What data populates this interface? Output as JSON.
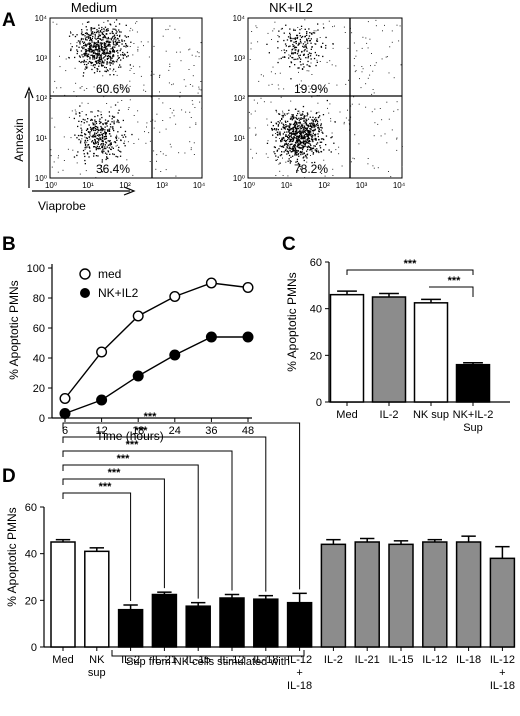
{
  "panels": {
    "A": {
      "letter": "A",
      "flow": [
        {
          "title": "Medium",
          "q_upper": "60.6%",
          "q_lower": "36.4%",
          "upper_density": 0.62,
          "lower_density": 0.36
        },
        {
          "title": "NK+IL2",
          "q_upper": "19.9%",
          "q_lower": "78.2%",
          "upper_density": 0.2,
          "lower_density": 0.78
        }
      ],
      "ylabel": "Annexin",
      "xlabel": "Viaprobe",
      "axis_ticks": [
        "10⁰",
        "10¹",
        "10²",
        "10³",
        "10⁴"
      ]
    },
    "B": {
      "letter": "B"
    },
    "C": {
      "letter": "C"
    },
    "D": {
      "letter": "D",
      "bracket_label": "Sup from NK cells stimulated with"
    }
  },
  "chart_data": [
    {
      "panel": "B",
      "type": "line",
      "x": [
        6,
        12,
        18,
        24,
        36,
        48
      ],
      "x_tick_labels": [
        "6",
        "12",
        "18",
        "24",
        "36",
        "48"
      ],
      "series": [
        {
          "name": "med",
          "marker": "open-circle",
          "values": [
            13,
            44,
            68,
            81,
            90,
            87
          ]
        },
        {
          "name": "NK+IL2",
          "marker": "filled-circle",
          "values": [
            3,
            12,
            28,
            42,
            54,
            54
          ]
        }
      ],
      "xlabel": "Time (hours)",
      "ylabel": "% Apoptotic PMNs",
      "ylim": [
        0,
        100
      ],
      "yticks": [
        0,
        20,
        40,
        60,
        80,
        100
      ],
      "legend": "top-left"
    },
    {
      "panel": "C",
      "type": "bar",
      "categories": [
        "Med",
        "IL-2",
        "NK sup",
        "NK+IL-2\nSup"
      ],
      "values": [
        46,
        45,
        42.5,
        16
      ],
      "errors": [
        1.5,
        1.5,
        1.5,
        0.8
      ],
      "fills": [
        "#ffffff",
        "#8c8c8c",
        "#ffffff",
        "#000000"
      ],
      "ylabel": "% Apoptotic PMNs",
      "ylim": [
        0,
        60
      ],
      "yticks": [
        0,
        20,
        40,
        60
      ],
      "significance": [
        {
          "from": 0,
          "to": 3,
          "label": "***"
        },
        {
          "from": 2,
          "to": 3,
          "label": "***"
        }
      ]
    },
    {
      "panel": "D",
      "type": "bar",
      "categories": [
        "Med",
        "NK\nsup",
        "IL-2",
        "IL-21",
        "IL-15",
        "IL-12",
        "IL-18",
        "IL-12\n+\nIL-18",
        "IL-2",
        "IL-21",
        "IL-15",
        "IL-12",
        "IL-18",
        "IL-12\n+\nIL-18"
      ],
      "values": [
        45,
        41,
        16,
        22.5,
        17.5,
        21,
        20.5,
        19,
        44,
        45,
        44,
        45,
        45,
        38
      ],
      "errors": [
        1,
        1.5,
        2,
        1,
        1.5,
        1.5,
        1.5,
        4,
        2,
        1.5,
        1.5,
        1,
        2.5,
        5
      ],
      "fills": [
        "#ffffff",
        "#ffffff",
        "#000000",
        "#000000",
        "#000000",
        "#000000",
        "#000000",
        "#000000",
        "#8c8c8c",
        "#8c8c8c",
        "#8c8c8c",
        "#8c8c8c",
        "#8c8c8c",
        "#8c8c8c"
      ],
      "ylabel": "% Apoptotic PMNs",
      "ylim": [
        0,
        60
      ],
      "yticks": [
        0,
        20,
        40,
        60
      ],
      "significance": [
        {
          "from": 0,
          "to": 2,
          "label": "***"
        },
        {
          "from": 0,
          "to": 3,
          "label": "***"
        },
        {
          "from": 0,
          "to": 4,
          "label": "***"
        },
        {
          "from": 0,
          "to": 5,
          "label": "***"
        },
        {
          "from": 0,
          "to": 6,
          "label": "***"
        },
        {
          "from": 0,
          "to": 7,
          "label": "***"
        }
      ]
    }
  ]
}
